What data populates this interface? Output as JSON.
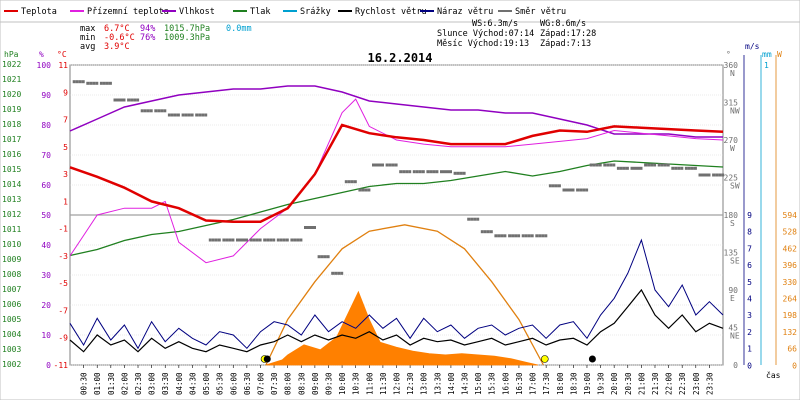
{
  "chart_data": {
    "type": "line",
    "title": "16.2.2014",
    "xlabel": "čas",
    "colors": {
      "temperature": "#e00000",
      "apparent": "#e020e0",
      "humidity": "#9000c0",
      "pressure": "#208020",
      "rain": "#00a0d0",
      "wind": "#000000",
      "gust": "#000080",
      "direction": "#707070",
      "solar": "#ff8000",
      "sun_path": "#e08010"
    },
    "legend": [
      {
        "label": "Teplota",
        "color": "#e00000"
      },
      {
        "label": "Přízemní teplota",
        "color": "#e020e0"
      },
      {
        "label": "Vlhkost",
        "color": "#9000c0"
      },
      {
        "label": "Tlak",
        "color": "#208020"
      },
      {
        "label": "Srážky",
        "color": "#00a0d0"
      },
      {
        "label": "Rychlost větru",
        "color": "#000000"
      },
      {
        "label": "Náraz větru",
        "color": "#000080"
      },
      {
        "label": "Směr větru",
        "color": "#707070"
      }
    ],
    "stats": {
      "max": {
        "label": "max",
        "temp": "6.7°C",
        "hum": "94%",
        "press": "1015.7hPa",
        "rain": "0.0mm"
      },
      "min": {
        "label": "min",
        "temp": "-0.6°C",
        "hum": "76%",
        "press": "1009.3hPa"
      },
      "avg": {
        "label": "avg",
        "temp": "3.9°C"
      }
    },
    "info": {
      "ws": "WS:6.3m/s",
      "wg": "WG:8.6m/s",
      "sun": "Slunce Východ:07:14",
      "sun_set": "Západ:17:28",
      "moon": "Měsíc Východ:19:13",
      "moon_set": "Západ:7:13"
    },
    "axes": {
      "hpa": {
        "unit": "hPa",
        "ticks": [
          "1022",
          "1021",
          "1020",
          "1019",
          "1018",
          "1017",
          "1016",
          "1015",
          "1014",
          "1013",
          "1012",
          "1011",
          "1010",
          "1009",
          "1008",
          "1007",
          "1006",
          "1005",
          "1004",
          "1003",
          "1002"
        ]
      },
      "pct": {
        "unit": "%",
        "ticks": [
          "100",
          "90",
          "80",
          "70",
          "60",
          "50",
          "40",
          "30",
          "20",
          "10",
          "0"
        ]
      },
      "temp": {
        "unit": "°C",
        "ticks": [
          "11",
          "9",
          "7",
          "5",
          "3",
          "1",
          "-1",
          "-3",
          "-5",
          "-7",
          "-9",
          "-11"
        ]
      },
      "dir": {
        "unit": "°",
        "ticks": [
          "360",
          "315",
          "270",
          "225",
          "180",
          "135",
          "90",
          "45",
          "0"
        ],
        "compass": [
          "N",
          "NW",
          "W",
          "SW",
          "S",
          "SE",
          "E",
          "NE"
        ]
      },
      "ms": {
        "unit": "m/s",
        "ticks": [
          "9",
          "8",
          "7",
          "6",
          "5",
          "4",
          "3",
          "2",
          "1",
          "0"
        ]
      },
      "mm": {
        "unit": "mm",
        "ticks": [
          "1"
        ]
      },
      "w": {
        "unit": "W",
        "ticks": [
          "594",
          "528",
          "462",
          "396",
          "330",
          "264",
          "198",
          "132",
          "66",
          "0"
        ]
      }
    },
    "x_ticks": [
      "00:30",
      "01:00",
      "01:30",
      "02:00",
      "02:30",
      "03:00",
      "03:30",
      "04:00",
      "04:30",
      "05:00",
      "05:30",
      "06:00",
      "06:30",
      "07:00",
      "07:30",
      "08:00",
      "08:30",
      "09:00",
      "09:30",
      "10:00",
      "10:30",
      "11:00",
      "11:30",
      "12:00",
      "12:30",
      "13:00",
      "13:30",
      "14:00",
      "14:30",
      "15:00",
      "15:30",
      "16:00",
      "16:30",
      "17:00",
      "17:30",
      "18:00",
      "18:30",
      "19:00",
      "19:30",
      "20:00",
      "20:30",
      "21:00",
      "21:30",
      "22:00",
      "22:30",
      "23:00",
      "23:30"
    ],
    "series": [
      {
        "key": "temperature",
        "name": "Teplota",
        "hours": [
          0,
          1,
          2,
          3,
          4,
          5,
          6,
          7,
          8,
          9,
          10,
          11,
          12,
          13,
          14,
          15,
          16,
          17,
          18,
          19,
          20,
          21,
          22,
          23,
          24
        ],
        "values": [
          3.5,
          2.8,
          2.0,
          1.0,
          0.5,
          -0.4,
          -0.5,
          -0.5,
          0.5,
          3.0,
          6.6,
          6.0,
          5.7,
          5.5,
          5.2,
          5.2,
          5.2,
          5.8,
          6.2,
          6.1,
          6.5,
          6.4,
          6.3,
          6.2,
          6.1
        ]
      },
      {
        "key": "apparent",
        "name": "Přízemní teplota",
        "hours": [
          0,
          0.5,
          1,
          2,
          3,
          3.5,
          4,
          5,
          6,
          7,
          8,
          9,
          10,
          10.5,
          11,
          12,
          13,
          14,
          15,
          16,
          17,
          18,
          19,
          20,
          21,
          22,
          23,
          24
        ],
        "values": [
          -3.0,
          -1.5,
          0.0,
          0.5,
          0.5,
          1.0,
          -2.0,
          -3.5,
          -3.0,
          -1.0,
          0.5,
          3.0,
          7.5,
          8.5,
          6.5,
          5.5,
          5.2,
          5.0,
          5.0,
          5.0,
          5.2,
          5.4,
          5.6,
          6.2,
          6.0,
          5.8,
          5.6,
          5.5
        ]
      },
      {
        "key": "humidity",
        "name": "Vlhkost",
        "hours": [
          0,
          1,
          2,
          3,
          4,
          5,
          6,
          7,
          8,
          9,
          10,
          11,
          12,
          13,
          14,
          15,
          16,
          17,
          18,
          19,
          20,
          21,
          22,
          23,
          24
        ],
        "values": [
          78,
          82,
          86,
          88,
          90,
          91,
          92,
          92,
          93,
          93,
          91,
          88,
          87,
          86,
          85,
          85,
          84,
          84,
          82,
          80,
          77,
          77,
          77,
          76,
          76
        ]
      },
      {
        "key": "pressure",
        "name": "Tlak",
        "hours": [
          0,
          1,
          2,
          3,
          4,
          5,
          6,
          7,
          8,
          9,
          10,
          11,
          12,
          13,
          14,
          15,
          16,
          17,
          18,
          19,
          20,
          21,
          22,
          23,
          24
        ],
        "values": [
          1009.3,
          1009.7,
          1010.3,
          1010.7,
          1010.9,
          1011.3,
          1011.7,
          1012.2,
          1012.7,
          1013.1,
          1013.5,
          1013.9,
          1014.1,
          1014.1,
          1014.3,
          1014.6,
          1014.9,
          1014.6,
          1014.9,
          1015.3,
          1015.6,
          1015.5,
          1015.4,
          1015.3,
          1015.2
        ]
      },
      {
        "key": "wind",
        "name": "Rychlost větru",
        "hours": [
          0,
          0.5,
          1,
          1.5,
          2,
          2.5,
          3,
          3.5,
          4,
          4.5,
          5,
          5.5,
          6,
          6.5,
          7,
          7.5,
          8,
          8.5,
          9,
          9.5,
          10,
          10.5,
          11,
          11.5,
          12,
          12.5,
          13,
          13.5,
          14,
          14.5,
          15,
          15.5,
          16,
          16.5,
          17,
          17.5,
          18,
          18.5,
          19,
          19.5,
          20,
          20.5,
          21,
          21.5,
          22,
          22.5,
          23,
          23.5,
          24
        ],
        "values": [
          1.5,
          0.8,
          1.8,
          1.2,
          1.5,
          0.8,
          1.6,
          1.0,
          1.4,
          1.0,
          0.8,
          1.2,
          1.0,
          0.8,
          1.2,
          1.4,
          1.8,
          1.4,
          1.8,
          1.5,
          1.8,
          1.6,
          2.0,
          1.5,
          1.8,
          1.2,
          1.6,
          1.4,
          1.5,
          1.2,
          1.4,
          1.6,
          1.2,
          1.4,
          1.6,
          1.2,
          1.5,
          1.6,
          1.2,
          2.0,
          2.5,
          3.5,
          4.5,
          3.0,
          2.2,
          3.0,
          2.0,
          2.5,
          2.2
        ]
      },
      {
        "key": "gust",
        "name": "Náraz větru",
        "hours": [
          0,
          0.5,
          1,
          1.5,
          2,
          2.5,
          3,
          3.5,
          4,
          4.5,
          5,
          5.5,
          6,
          6.5,
          7,
          7.5,
          8,
          8.5,
          9,
          9.5,
          10,
          10.5,
          11,
          11.5,
          12,
          12.5,
          13,
          13.5,
          14,
          14.5,
          15,
          15.5,
          16,
          16.5,
          17,
          17.5,
          18,
          18.5,
          19,
          19.5,
          20,
          20.5,
          21,
          21.5,
          22,
          22.5,
          23,
          23.5,
          24
        ],
        "values": [
          2.5,
          1.2,
          2.8,
          1.5,
          2.4,
          1.0,
          2.6,
          1.4,
          2.2,
          1.6,
          1.2,
          2.0,
          1.8,
          1.0,
          2.0,
          2.6,
          2.4,
          1.8,
          3.0,
          2.0,
          2.6,
          2.2,
          3.0,
          2.2,
          2.8,
          1.6,
          2.8,
          2.0,
          2.4,
          1.6,
          2.2,
          2.4,
          1.8,
          2.2,
          2.4,
          1.6,
          2.4,
          2.6,
          1.6,
          3.0,
          4.0,
          5.5,
          7.5,
          4.5,
          3.5,
          4.8,
          3.0,
          3.8,
          3.0
        ]
      },
      {
        "key": "direction",
        "name": "Směr větru",
        "hours": [
          0.1,
          0.6,
          1.1,
          1.6,
          2.1,
          2.6,
          3.1,
          3.6,
          4.1,
          4.6,
          5.1,
          5.6,
          6.1,
          6.6,
          7.1,
          7.6,
          8.1,
          8.6,
          9.1,
          9.6,
          10.1,
          10.6,
          11.1,
          11.6,
          12.1,
          12.6,
          13.1,
          13.6,
          14.1,
          14.6,
          15.1,
          15.6,
          16.1,
          16.6,
          17.1,
          17.6,
          18.1,
          18.6,
          19.1,
          19.6,
          20.1,
          20.6,
          21.1,
          21.6,
          22.1,
          22.6,
          23.1,
          23.6
        ],
        "values": [
          340,
          338,
          338,
          318,
          318,
          305,
          305,
          300,
          300,
          300,
          150,
          150,
          150,
          150,
          150,
          150,
          150,
          165,
          130,
          110,
          220,
          210,
          240,
          240,
          232,
          232,
          232,
          232,
          230,
          175,
          160,
          155,
          155,
          155,
          155,
          215,
          210,
          210,
          240,
          240,
          236,
          236,
          240,
          240,
          236,
          236,
          228,
          228
        ]
      },
      {
        "key": "solar",
        "name": "solar",
        "hours": [
          7.2,
          7.8,
          8.0,
          8.6,
          9.2,
          9.8,
          10.2,
          10.6,
          11.0,
          11.4,
          12.0,
          12.6,
          13.2,
          13.8,
          14.4,
          15.0,
          15.6,
          16.2,
          16.8,
          17.2
        ],
        "values": [
          0,
          20,
          40,
          80,
          60,
          110,
          200,
          290,
          180,
          90,
          70,
          55,
          45,
          40,
          45,
          40,
          35,
          25,
          10,
          0
        ]
      },
      {
        "key": "sun_path",
        "name": "sun_path",
        "hours": [
          7.2,
          8.0,
          9.0,
          10.0,
          11.0,
          12.3,
          13.5,
          14.5,
          15.5,
          16.5,
          17.4
        ],
        "values": [
          0,
          180,
          330,
          460,
          530,
          555,
          530,
          460,
          330,
          180,
          0
        ]
      }
    ]
  }
}
